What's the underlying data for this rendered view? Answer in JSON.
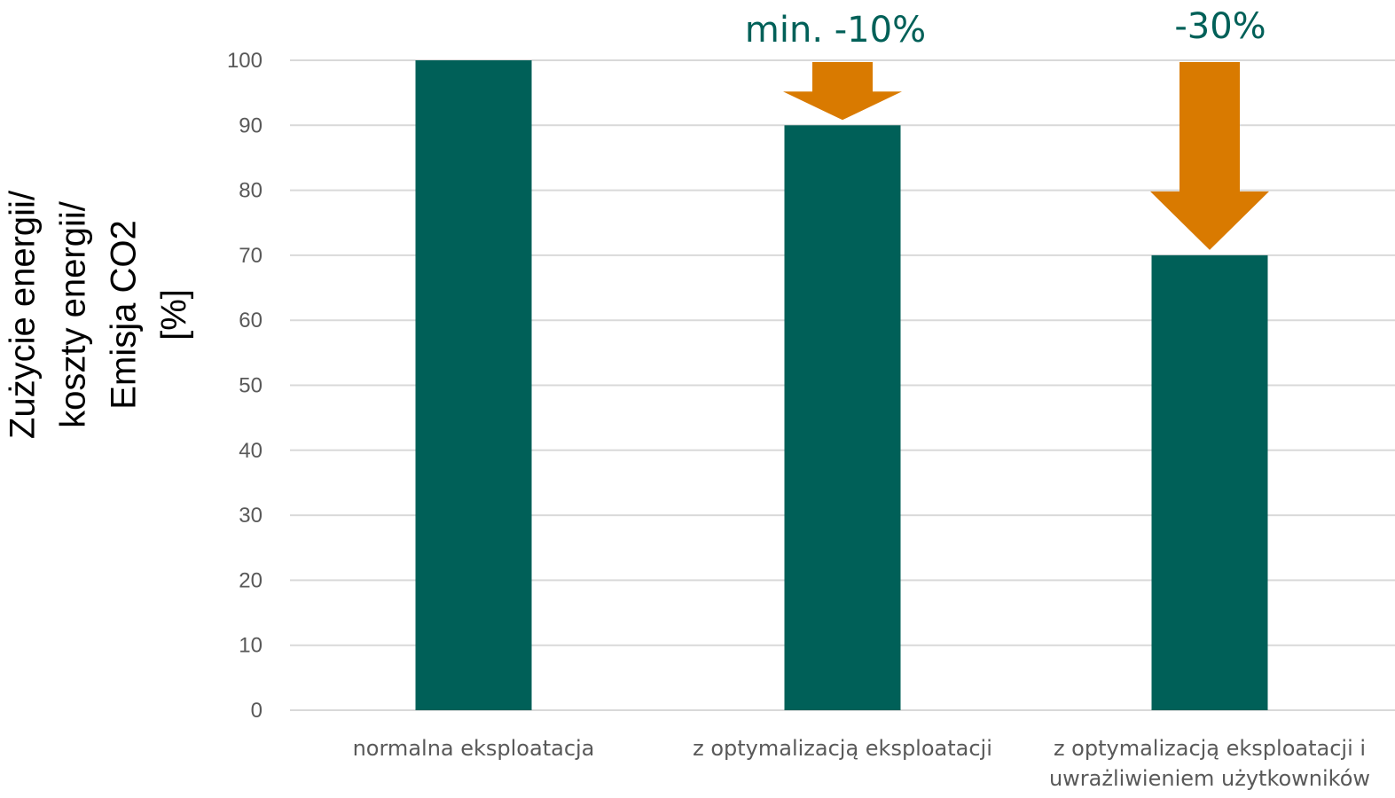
{
  "chart_data": {
    "type": "bar",
    "categories": [
      [
        "normalna eksploatacja"
      ],
      [
        "z optymalizacją eksploatacji"
      ],
      [
        "z optymalizacją eksploatacji i",
        "uwrażliwieniem użytkowników"
      ]
    ],
    "values": [
      100,
      90,
      70
    ],
    "ylim": [
      0,
      100
    ],
    "yticks": [
      0,
      10,
      20,
      30,
      40,
      50,
      60,
      70,
      80,
      90,
      100
    ],
    "ylabel_lines": [
      "Zużycie energii/",
      "koszty energii/",
      "Emisja CO2",
      "[%]"
    ],
    "grid": true,
    "annotations": [
      {
        "text": "min. -10%",
        "category_index": 1,
        "from": 100,
        "to": 90
      },
      {
        "text": "-30%",
        "category_index": 2,
        "from": 100,
        "to": 70
      }
    ]
  },
  "colors": {
    "bar": "#006058",
    "arrow": "#D97A00",
    "annotation_text": "#006058",
    "grid": "#D9D9D9",
    "tick_text": "#595959"
  }
}
